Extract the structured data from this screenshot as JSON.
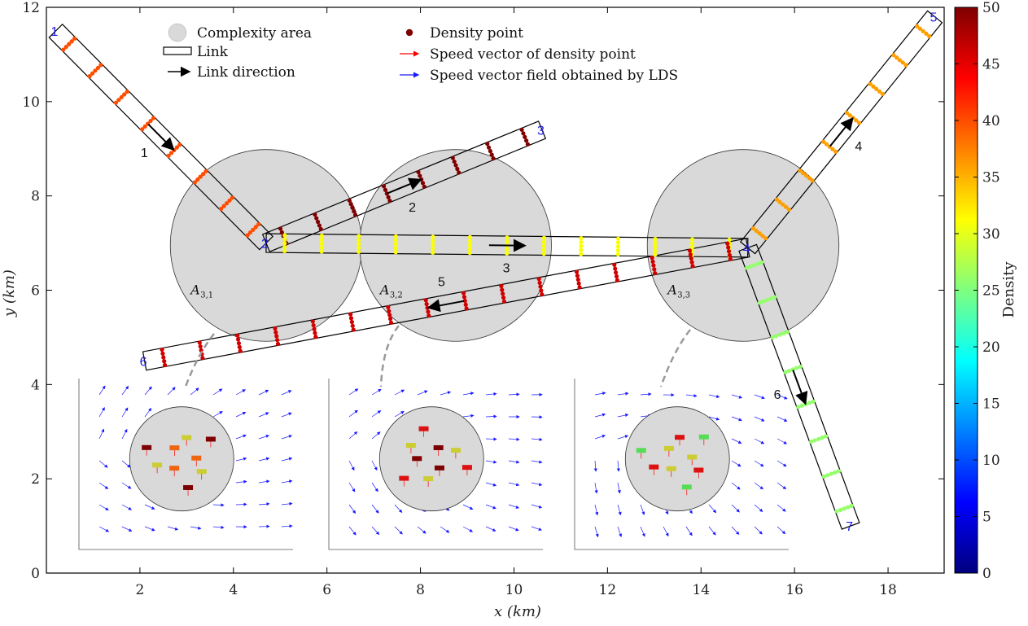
{
  "chart_data": {
    "type": "scatter",
    "xlabel": "x (km)",
    "ylabel": "y (km)",
    "xlim": [
      0,
      19.2
    ],
    "ylim": [
      0,
      12
    ],
    "xticks": [
      2,
      4,
      6,
      8,
      10,
      12,
      14,
      16,
      18
    ],
    "yticks": [
      0,
      2,
      4,
      6,
      8,
      10,
      12
    ],
    "colorbar": {
      "label": "Density",
      "min": 0,
      "max": 50,
      "ticks": [
        0,
        5,
        10,
        15,
        20,
        25,
        30,
        35,
        40,
        45,
        50
      ]
    },
    "legend": [
      {
        "label": "Complexity area",
        "marker": "circle-gray"
      },
      {
        "label": "Link",
        "marker": "rect"
      },
      {
        "label": "Link direction",
        "marker": "arrow-black"
      },
      {
        "label": "Density point",
        "marker": "dot-darkred"
      },
      {
        "label": "Speed vector of density point",
        "marker": "arrow-red"
      },
      {
        "label": "Speed vector field obtained by LDS",
        "marker": "arrow-blue"
      }
    ],
    "nodes": [
      {
        "id": "1",
        "x": 0.2,
        "y": 11.5
      },
      {
        "id": "2",
        "x": 4.7,
        "y": 7.0
      },
      {
        "id": "3",
        "x": 10.6,
        "y": 9.4
      },
      {
        "id": "4",
        "x": 15.0,
        "y": 6.9
      },
      {
        "id": "5",
        "x": 19.0,
        "y": 11.8
      },
      {
        "id": "6",
        "x": 2.1,
        "y": 4.5
      },
      {
        "id": "7",
        "x": 17.2,
        "y": 1.0
      }
    ],
    "links": [
      {
        "id": "1",
        "from": "1",
        "to": "2",
        "density": 40
      },
      {
        "id": "2",
        "from": "2",
        "to": "3",
        "density": 50
      },
      {
        "id": "3",
        "from": "2",
        "to": "4",
        "density": 31
      },
      {
        "id": "4",
        "from": "4",
        "to": "5",
        "density": 36
      },
      {
        "id": "5",
        "from": "4",
        "to": "6",
        "density": 46
      },
      {
        "id": "6",
        "from": "4",
        "to": "7",
        "density": 26
      }
    ],
    "complexity_areas": [
      {
        "name": "A",
        "sub": "3,1",
        "x": 4.7,
        "y": 6.95,
        "r": 2.05
      },
      {
        "name": "A",
        "sub": "3,2",
        "x": 8.75,
        "y": 6.95,
        "r": 2.05
      },
      {
        "name": "A",
        "sub": "3,3",
        "x": 14.9,
        "y": 6.95,
        "r": 2.05
      }
    ]
  }
}
